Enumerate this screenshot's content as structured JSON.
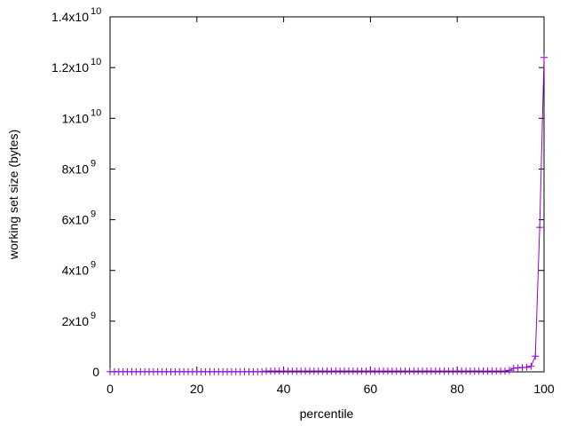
{
  "chart_data": {
    "type": "line",
    "title": "",
    "xlabel": "percentile",
    "ylabel": "working set size (bytes)",
    "xlim": [
      0,
      100
    ],
    "ylim": [
      0,
      14000000000
    ],
    "grid": false,
    "marker": "plus",
    "series_color": "#9400d3",
    "x_ticks": [
      "0",
      "20",
      "40",
      "60",
      "80",
      "100"
    ],
    "y_ticks": [
      {
        "mant": "0",
        "exp": ""
      },
      {
        "mant": "2x10",
        "exp": "9"
      },
      {
        "mant": "4x10",
        "exp": "9"
      },
      {
        "mant": "6x10",
        "exp": "9"
      },
      {
        "mant": "8x10",
        "exp": "9"
      },
      {
        "mant": "1x10",
        "exp": "10"
      },
      {
        "mant": "1.2x10",
        "exp": "10"
      },
      {
        "mant": "1.4x10",
        "exp": "10"
      }
    ],
    "plateaus": [
      {
        "from": 0,
        "to": 35,
        "value": 5000000
      },
      {
        "from": 36,
        "to": 91,
        "value": 30000000
      }
    ],
    "tail": [
      [
        92,
        60000000
      ],
      [
        93,
        140000000
      ],
      [
        94,
        160000000
      ],
      [
        95,
        170000000
      ],
      [
        96,
        180000000
      ],
      [
        97,
        220000000
      ],
      [
        98,
        620000000
      ],
      [
        99,
        5700000000
      ],
      [
        100,
        12400000000
      ]
    ]
  }
}
